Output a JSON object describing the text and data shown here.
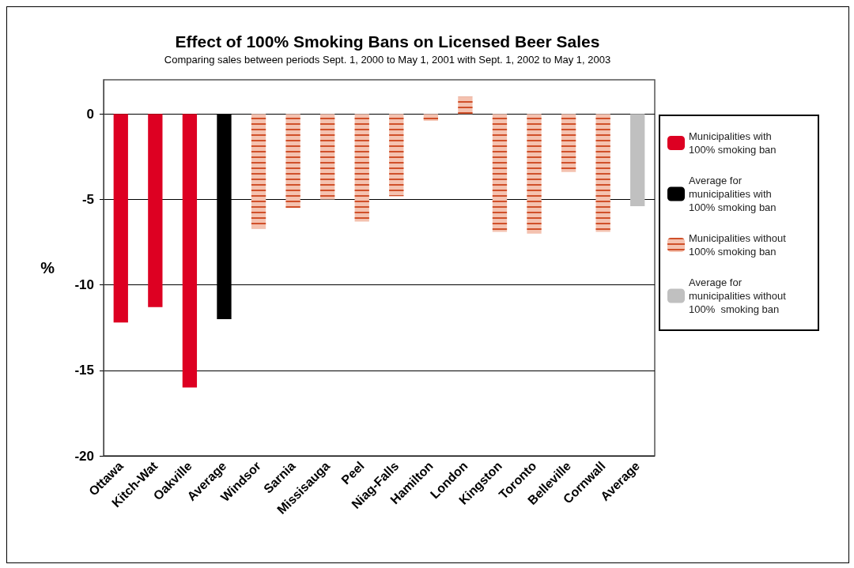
{
  "chart_data": {
    "type": "bar",
    "title": "Effect of 100% Smoking Bans on Licensed Beer Sales",
    "subtitle": "Comparing sales between periods Sept. 1, 2000 to May 1, 2001 with Sept. 1, 2002 to May 1, 2003",
    "ylabel": "%",
    "categories": [
      "Ottawa",
      "Kitch-Wat",
      "Oakville",
      "Average",
      "Windsor",
      "Sarnia",
      "Missisauga",
      "Peel",
      "Niag-Falls",
      "Hamilton",
      "London",
      "Kingston",
      "Toronto",
      "Belleville",
      "Cornwall",
      "Average"
    ],
    "series": [
      {
        "name": "Municipalities with 100% smoking ban",
        "color": "#dd0022",
        "values": [
          -12.2,
          -11.3,
          -16.0,
          null,
          null,
          null,
          null,
          null,
          null,
          null,
          null,
          null,
          null,
          null,
          null,
          null
        ]
      },
      {
        "name": "Average for municipalities with 100% smoking ban",
        "color": "#000000",
        "values": [
          null,
          null,
          null,
          -12.0,
          null,
          null,
          null,
          null,
          null,
          null,
          null,
          null,
          null,
          null,
          null,
          null
        ]
      },
      {
        "name": "Municipalities without 100% smoking ban",
        "color": "#f4c2b0",
        "values": [
          null,
          null,
          null,
          null,
          -6.7,
          -5.5,
          -5.0,
          -6.3,
          -4.8,
          -0.4,
          1.0,
          -6.9,
          -7.0,
          -3.4,
          -6.9,
          null
        ]
      },
      {
        "name": "Average for municipalities without 100%  smoking ban",
        "color": "#c0c0c0",
        "values": [
          null,
          null,
          null,
          null,
          null,
          null,
          null,
          null,
          null,
          null,
          null,
          null,
          null,
          null,
          null,
          -5.4
        ]
      }
    ],
    "stacked": true,
    "ylim": [
      -20,
      2
    ],
    "yticks": [
      -20,
      -15,
      -10,
      -5,
      0
    ],
    "grid": "y",
    "legend": "right"
  }
}
